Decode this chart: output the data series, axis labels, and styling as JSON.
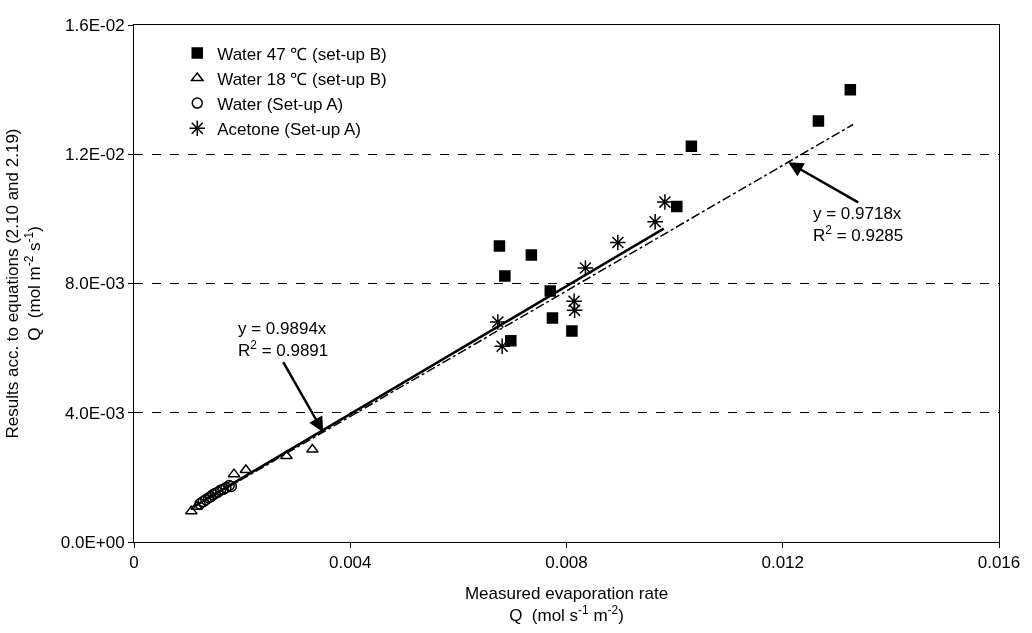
{
  "chart_data": {
    "type": "scatter",
    "xlabel": "Measured evaporation rate\nQ  (mol s$^{-1}$ m$^{-2}$)",
    "ylabel": "Results acc. to equations (2.10 and 2.19)\nQ  (mol m$^{-2}$ s$^{-1}$)",
    "xlim": [
      0,
      0.016
    ],
    "xticks": [
      0,
      0.004,
      0.008,
      0.012,
      0.016
    ],
    "ylim": [
      0,
      0.016
    ],
    "yticks": [
      {
        "value": 0,
        "label": "0.0E+00"
      },
      {
        "value": 0.004,
        "label": "4.0E-03"
      },
      {
        "value": 0.008,
        "label": "8.0E-03"
      },
      {
        "value": 0.012,
        "label": "1.2E-02"
      },
      {
        "value": 0.016,
        "label": "1.6E-02"
      }
    ],
    "grid": "y",
    "legend": "top left",
    "series": [
      {
        "name": "Water 47 ℃ (set-up B)",
        "color": "#000000",
        "marker": "square",
        "x": [
          0.00676,
          0.00735,
          0.00686,
          0.0077,
          0.00774,
          0.00697,
          0.0081,
          0.01004,
          0.01031,
          0.01266,
          0.01325
        ],
        "values": [
          0.00916,
          0.00888,
          0.00823,
          0.00777,
          0.00693,
          0.00623,
          0.00653,
          0.01038,
          0.01225,
          0.01303,
          0.014
        ]
      },
      {
        "name": "Water 18 ℃ (set-up B)",
        "color": "#000000",
        "marker": "triangle",
        "x": [
          0.0033,
          0.00282,
          0.00207,
          0.00185,
          0.00106,
          0.00116
        ],
        "values": [
          0.00286,
          0.00266,
          0.00223,
          0.0021,
          0.00095,
          0.00109
        ]
      },
      {
        "name": "Water (Set-up A)",
        "color": "#000000",
        "marker": "circle",
        "x": [
          0.00122,
          0.00128,
          0.00133,
          0.00138,
          0.00142,
          0.00146,
          0.0015,
          0.00155,
          0.0016,
          0.00165,
          0.0017,
          0.00176,
          0.0018
        ],
        "values": [
          0.00118,
          0.00125,
          0.00131,
          0.00137,
          0.0014,
          0.00146,
          0.0015,
          0.00154,
          0.0016,
          0.00163,
          0.00168,
          0.00175,
          0.00172
        ]
      },
      {
        "name": "Acetone (Set-up A)",
        "color": "#000000",
        "marker": "cross",
        "x": [
          0.00982,
          0.00964,
          0.00895,
          0.00835,
          0.00814,
          0.00815,
          0.00673,
          0.00681
        ],
        "values": [
          0.01052,
          0.00991,
          0.00927,
          0.00848,
          0.00745,
          0.00717,
          0.00681,
          0.00606
        ]
      },
      {
        "type": "line",
        "color": "#000000",
        "marker": "none",
        "line_style": "solid",
        "x": [
          0.0011,
          0.0098
        ],
        "values": [
          0.00109,
          0.0097
        ]
      },
      {
        "type": "line",
        "color": "#000000",
        "marker": "none",
        "line_style": "dashed",
        "x": [
          0.0011,
          0.0133
        ],
        "values": [
          0.00107,
          0.01292
        ]
      }
    ],
    "annotations": [
      {
        "text": "y = 0.9894x\nR$^{2}$ = 0.9891",
        "x": 0.0035,
        "y": 0.0034
      },
      {
        "text": "y = 0.9718x\nR$^{2}$ = 0.9285",
        "x": 0.0121,
        "y": 0.01175
      }
    ]
  }
}
